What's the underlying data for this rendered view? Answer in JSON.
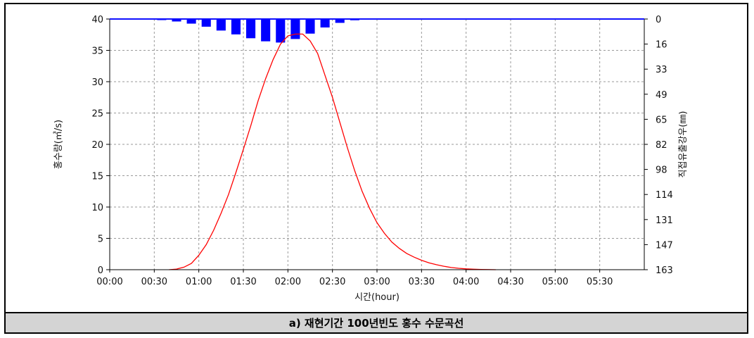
{
  "caption": "a) 재현기간 100년빈도 홍수 수문곡선",
  "chart_data": {
    "type": "line+bar",
    "xlabel": "시간(hour)",
    "ylabel_left": "홍수량(㎥/s)",
    "ylabel_right": "직접유출강우(㎜)",
    "x_ticks": [
      "00:00",
      "00:30",
      "01:00",
      "01:30",
      "02:00",
      "02:30",
      "03:00",
      "03:30",
      "04:00",
      "04:30",
      "05:00",
      "05:30"
    ],
    "x_range_minutes": [
      0,
      360
    ],
    "y_left_ticks": [
      "0",
      "5",
      "10",
      "15",
      "20",
      "25",
      "30",
      "35",
      "40"
    ],
    "y_left_range": [
      0,
      40
    ],
    "y_right_ticks": [
      "0",
      "16",
      "33",
      "49",
      "65",
      "82",
      "98",
      "114",
      "131",
      "147",
      "163"
    ],
    "y_right_range": [
      0,
      163
    ],
    "y_right_inverted": true,
    "grid": true,
    "hydrograph": {
      "color": "#ff0000",
      "points": [
        [
          40,
          0
        ],
        [
          45,
          0.1
        ],
        [
          50,
          0.4
        ],
        [
          55,
          1.0
        ],
        [
          60,
          2.3
        ],
        [
          65,
          4.0
        ],
        [
          70,
          6.3
        ],
        [
          75,
          9.0
        ],
        [
          80,
          12.0
        ],
        [
          85,
          15.5
        ],
        [
          90,
          19.2
        ],
        [
          95,
          23.0
        ],
        [
          100,
          27.0
        ],
        [
          105,
          30.5
        ],
        [
          110,
          33.5
        ],
        [
          115,
          36.0
        ],
        [
          120,
          37.3
        ],
        [
          125,
          37.6
        ],
        [
          130,
          37.6
        ],
        [
          135,
          36.5
        ],
        [
          140,
          34.5
        ],
        [
          145,
          31.0
        ],
        [
          150,
          27.5
        ],
        [
          155,
          23.5
        ],
        [
          160,
          19.5
        ],
        [
          165,
          15.8
        ],
        [
          170,
          12.5
        ],
        [
          175,
          9.8
        ],
        [
          180,
          7.5
        ],
        [
          185,
          5.8
        ],
        [
          190,
          4.4
        ],
        [
          195,
          3.4
        ],
        [
          200,
          2.6
        ],
        [
          205,
          2.0
        ],
        [
          210,
          1.5
        ],
        [
          215,
          1.1
        ],
        [
          220,
          0.8
        ],
        [
          225,
          0.55
        ],
        [
          230,
          0.35
        ],
        [
          235,
          0.22
        ],
        [
          240,
          0.14
        ],
        [
          245,
          0.08
        ],
        [
          250,
          0.04
        ],
        [
          255,
          0.02
        ],
        [
          260,
          0
        ]
      ]
    },
    "rainfall": {
      "color": "#0000ff",
      "interval_minutes": 10,
      "bars": [
        [
          0,
          0.2
        ],
        [
          10,
          0.2
        ],
        [
          20,
          0.3
        ],
        [
          30,
          0.7
        ],
        [
          40,
          1.6
        ],
        [
          50,
          3.0
        ],
        [
          60,
          5.0
        ],
        [
          70,
          7.5
        ],
        [
          80,
          10.0
        ],
        [
          90,
          12.5
        ],
        [
          100,
          14.5
        ],
        [
          110,
          15.3
        ],
        [
          120,
          13.0
        ],
        [
          130,
          9.5
        ],
        [
          140,
          5.5
        ],
        [
          150,
          2.5
        ],
        [
          160,
          0.8
        ],
        [
          170,
          0.3
        ],
        [
          180,
          0.2
        ],
        [
          190,
          0.2
        ],
        [
          200,
          0.2
        ],
        [
          210,
          0.2
        ],
        [
          220,
          0.2
        ],
        [
          230,
          0.2
        ],
        [
          240,
          0.2
        ],
        [
          250,
          0.2
        ],
        [
          260,
          0.2
        ],
        [
          270,
          0.2
        ],
        [
          280,
          0.2
        ],
        [
          290,
          0.2
        ],
        [
          300,
          0.2
        ],
        [
          310,
          0.2
        ],
        [
          320,
          0.2
        ],
        [
          330,
          0.2
        ],
        [
          340,
          0.2
        ],
        [
          350,
          0.2
        ]
      ]
    }
  }
}
